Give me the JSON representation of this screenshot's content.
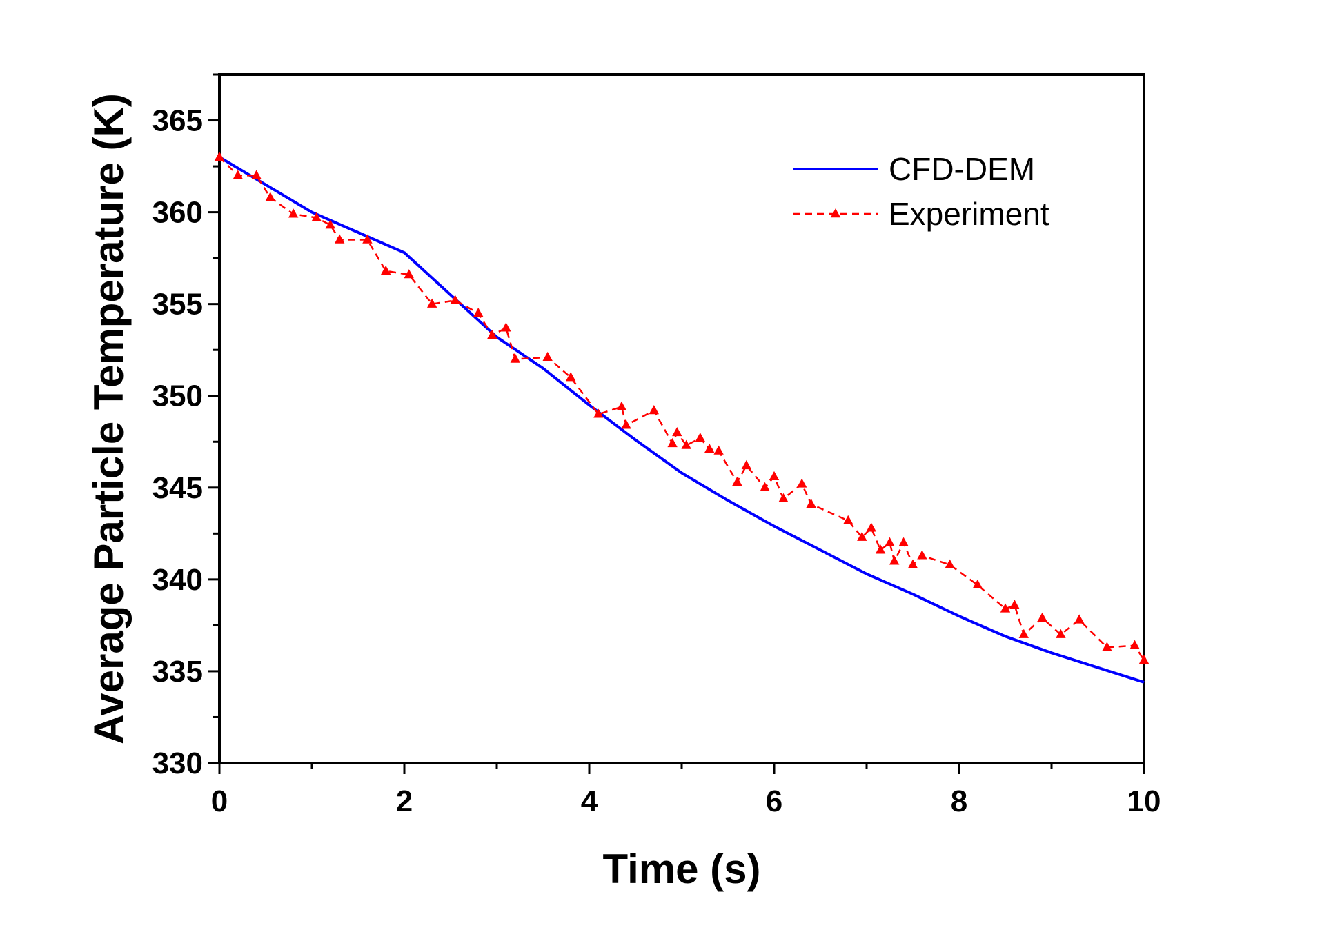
{
  "chart_data": {
    "type": "line",
    "title": "",
    "xlabel": "Time (s)",
    "ylabel": "Average Particle Temperature (K)",
    "xlim": [
      0,
      10
    ],
    "ylim": [
      330,
      367.5
    ],
    "xticks": [
      0,
      2,
      4,
      6,
      8,
      10
    ],
    "xtick_labels": [
      "0",
      "2",
      "4",
      "6",
      "8",
      "10"
    ],
    "yticks": [
      330,
      335,
      340,
      345,
      350,
      355,
      360,
      365
    ],
    "ytick_labels": [
      "330",
      "335",
      "340",
      "345",
      "350",
      "355",
      "360",
      "365"
    ],
    "grid": false,
    "legend_position": "top-right",
    "series": [
      {
        "name": "CFD-DEM",
        "color": "#0000ff",
        "style": "solid",
        "marker": "none",
        "x": [
          0,
          0.5,
          1,
          1.5,
          2,
          2.5,
          3,
          3.5,
          4,
          4.5,
          5,
          5.5,
          6,
          6.5,
          7,
          7.5,
          8,
          8.5,
          9,
          9.5,
          10
        ],
        "y": [
          363,
          361.5,
          360,
          358.9,
          357.8,
          355.5,
          353.2,
          351.5,
          349.5,
          347.6,
          345.8,
          344.3,
          342.9,
          341.6,
          340.3,
          339.2,
          338.0,
          336.9,
          336.0,
          335.2,
          334.4
        ]
      },
      {
        "name": "Experiment",
        "color": "#ff0000",
        "style": "dashed",
        "marker": "triangle",
        "x": [
          0,
          0.2,
          0.4,
          0.55,
          0.8,
          1.05,
          1.2,
          1.3,
          1.6,
          1.8,
          2.05,
          2.3,
          2.55,
          2.8,
          2.95,
          3.1,
          3.2,
          3.55,
          3.8,
          4.1,
          4.35,
          4.4,
          4.7,
          4.9,
          4.95,
          5.05,
          5.2,
          5.3,
          5.4,
          5.6,
          5.7,
          5.9,
          6.0,
          6.1,
          6.3,
          6.4,
          6.8,
          6.95,
          7.05,
          7.15,
          7.25,
          7.3,
          7.4,
          7.5,
          7.6,
          7.9,
          8.2,
          8.5,
          8.6,
          8.7,
          8.9,
          9.1,
          9.3,
          9.6,
          9.9,
          10
        ],
        "y": [
          363,
          362,
          362,
          360.8,
          359.9,
          359.7,
          359.3,
          358.5,
          358.5,
          356.8,
          356.6,
          355,
          355.2,
          354.5,
          353.3,
          353.7,
          352,
          352.1,
          351,
          349,
          349.4,
          348.4,
          349.2,
          347.4,
          348,
          347.3,
          347.7,
          347.1,
          347,
          345.3,
          346.2,
          345,
          345.6,
          344.4,
          345.2,
          344.1,
          343.2,
          342.3,
          342.8,
          341.6,
          342,
          341,
          342,
          340.8,
          341.3,
          340.8,
          339.7,
          338.4,
          338.6,
          337,
          337.9,
          337,
          337.8,
          336.3,
          336.4,
          335.6
        ]
      }
    ]
  }
}
